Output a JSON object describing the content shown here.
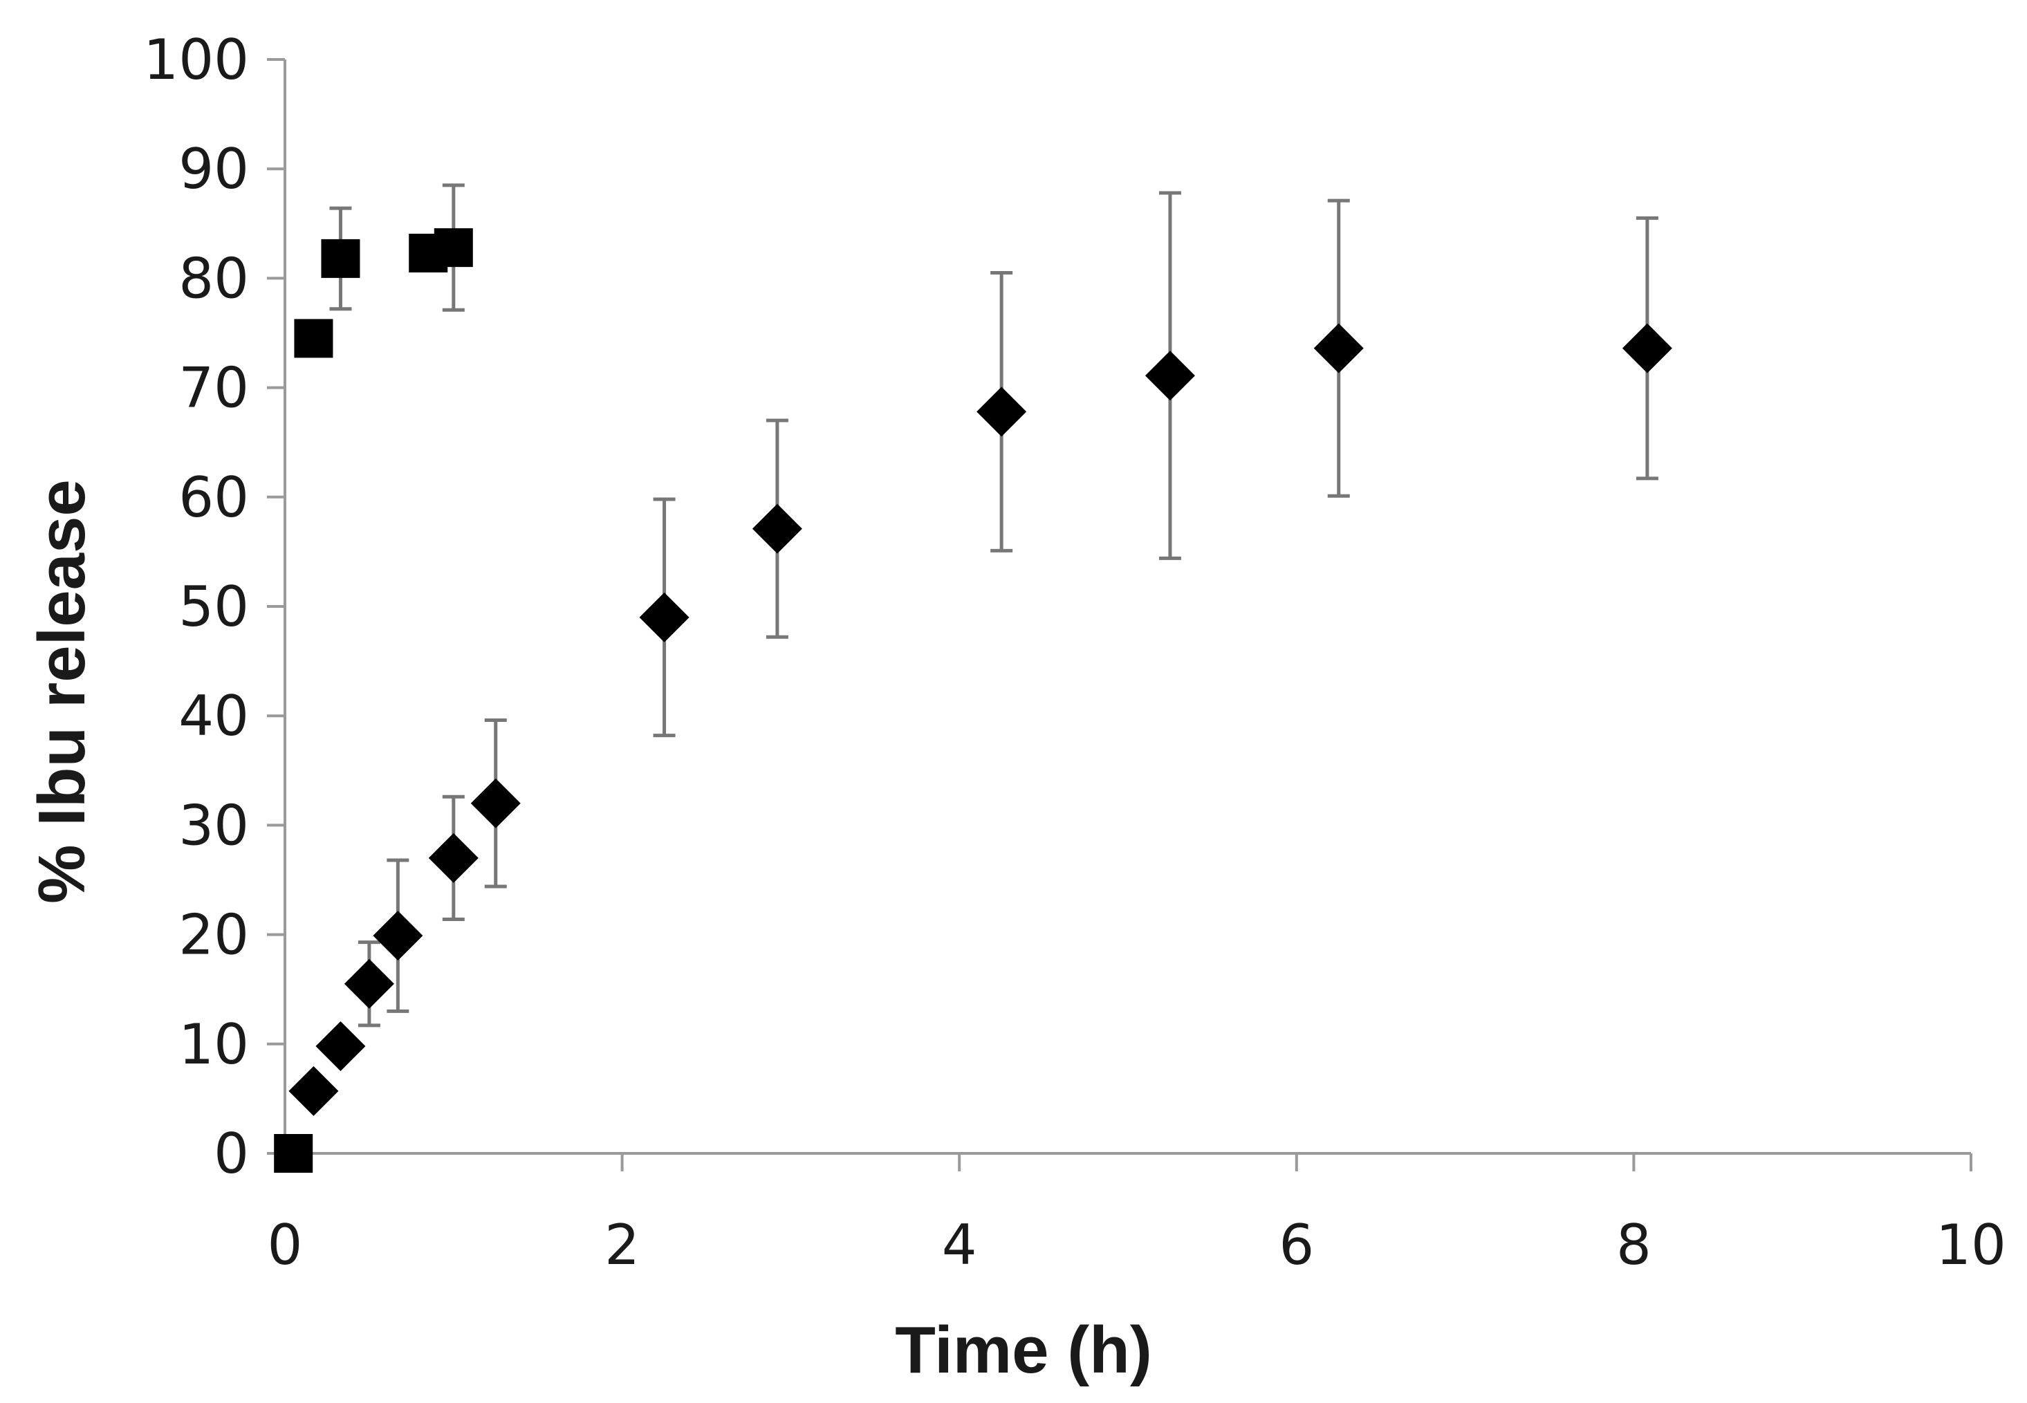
{
  "chart_data": {
    "type": "scatter",
    "title": "",
    "xlabel": "Time (h)",
    "ylabel": "% Ibu release",
    "xlim": [
      0,
      10
    ],
    "ylim": [
      0,
      100
    ],
    "x_ticks": [
      0,
      2,
      4,
      6,
      8,
      10
    ],
    "y_ticks": [
      0,
      10,
      20,
      30,
      40,
      50,
      60,
      70,
      80,
      90,
      100
    ],
    "x_tick_labels": [
      "0",
      "2",
      "4",
      "6",
      "8",
      "10"
    ],
    "y_tick_labels": [
      "0",
      "10",
      "20",
      "30",
      "40",
      "50",
      "60",
      "70",
      "80",
      "90",
      "100"
    ],
    "grid": false,
    "legend": "none",
    "series": [
      {
        "marker": "square",
        "color": "#000000",
        "points": [
          {
            "x": 0.05,
            "y": 0,
            "err": null
          },
          {
            "x": 0.17,
            "y": 74.5,
            "err": null
          },
          {
            "x": 0.33,
            "y": 81.8,
            "err": 4.6
          },
          {
            "x": 0.85,
            "y": 82.3,
            "err": null
          },
          {
            "x": 1.0,
            "y": 82.8,
            "err": 5.7
          }
        ]
      },
      {
        "marker": "diamond",
        "color": "#000000",
        "points": [
          {
            "x": 0.17,
            "y": 5.7,
            "err": null
          },
          {
            "x": 0.33,
            "y": 9.8,
            "err": null
          },
          {
            "x": 0.5,
            "y": 15.5,
            "err": 3.8
          },
          {
            "x": 0.67,
            "y": 19.9,
            "err": 6.9
          },
          {
            "x": 1.0,
            "y": 27.0,
            "err": 5.6
          },
          {
            "x": 1.25,
            "y": 32.0,
            "err": 7.6
          },
          {
            "x": 2.25,
            "y": 49.0,
            "err": 10.8
          },
          {
            "x": 2.92,
            "y": 57.1,
            "err": 9.9
          },
          {
            "x": 4.25,
            "y": 67.8,
            "err": 12.7
          },
          {
            "x": 5.25,
            "y": 71.1,
            "err": 16.7
          },
          {
            "x": 6.25,
            "y": 73.6,
            "err": 13.5
          },
          {
            "x": 8.08,
            "y": 73.6,
            "err": 11.9
          }
        ]
      }
    ]
  }
}
